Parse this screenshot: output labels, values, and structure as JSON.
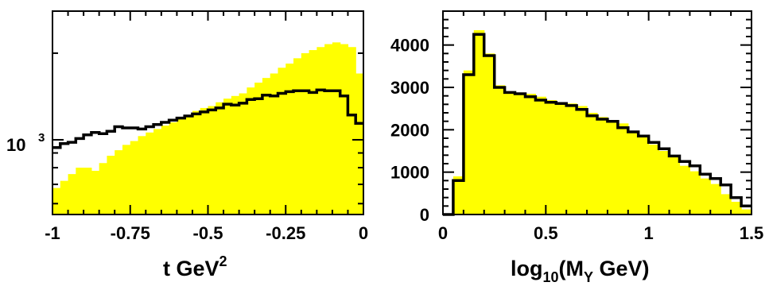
{
  "colors": {
    "fill_histogram": "#ffff00",
    "line_histogram": "#000000",
    "frame": "#000000"
  },
  "chart_data": [
    {
      "type": "histogram",
      "yscale": "log",
      "xlim": [
        -1,
        0
      ],
      "ylim": [
        550,
        2800
      ],
      "xlabel": {
        "base": "t GeV",
        "sup": "2"
      },
      "ylabel": "",
      "ytick_labels": [
        {
          "value": 1000,
          "base": "10",
          "sup": "3"
        }
      ],
      "xtick_labels": [
        {
          "value": -1,
          "label": "-1"
        },
        {
          "value": -0.75,
          "label": "-0.75"
        },
        {
          "value": -0.5,
          "label": "-0.5"
        },
        {
          "value": -0.25,
          "label": "-0.25"
        },
        {
          "value": 0,
          "label": "0"
        }
      ],
      "bin_edges": [
        -1,
        -0.975,
        -0.95,
        -0.925,
        -0.9,
        -0.875,
        -0.85,
        -0.825,
        -0.8,
        -0.775,
        -0.75,
        -0.725,
        -0.7,
        -0.675,
        -0.65,
        -0.625,
        -0.6,
        -0.575,
        -0.55,
        -0.525,
        -0.5,
        -0.475,
        -0.45,
        -0.425,
        -0.4,
        -0.375,
        -0.35,
        -0.325,
        -0.3,
        -0.275,
        -0.25,
        -0.225,
        -0.2,
        -0.175,
        -0.15,
        -0.125,
        -0.1,
        -0.075,
        -0.05,
        -0.025,
        0
      ],
      "series": [
        {
          "style": "filled",
          "values": [
            680,
            720,
            760,
            800,
            800,
            780,
            830,
            880,
            920,
            960,
            990,
            1030,
            1060,
            1090,
            1120,
            1150,
            1180,
            1210,
            1260,
            1290,
            1310,
            1350,
            1390,
            1420,
            1450,
            1520,
            1580,
            1640,
            1700,
            1780,
            1840,
            1920,
            2000,
            2050,
            2100,
            2150,
            2180,
            2150,
            2100,
            1700
          ]
        },
        {
          "style": "outline",
          "values": [
            940,
            970,
            980,
            1010,
            1040,
            1060,
            1050,
            1070,
            1110,
            1100,
            1100,
            1090,
            1110,
            1130,
            1150,
            1170,
            1190,
            1210,
            1230,
            1250,
            1270,
            1290,
            1330,
            1320,
            1340,
            1380,
            1390,
            1430,
            1420,
            1450,
            1470,
            1480,
            1480,
            1460,
            1490,
            1480,
            1480,
            1420,
            1220,
            1140
          ]
        }
      ]
    },
    {
      "type": "histogram",
      "yscale": "linear",
      "xlim": [
        0,
        1.5
      ],
      "ylim": [
        0,
        4800
      ],
      "xlabel": {
        "base": "log",
        "sub": "10",
        "mid": "(M",
        "sub2": "Y",
        "tail": " GeV)"
      },
      "ylabel": "",
      "ytick_labels": [
        {
          "value": 0,
          "label": "0"
        },
        {
          "value": 1000,
          "label": "1000"
        },
        {
          "value": 2000,
          "label": "2000"
        },
        {
          "value": 3000,
          "label": "3000"
        },
        {
          "value": 4000,
          "label": "4000"
        }
      ],
      "xtick_labels": [
        {
          "value": 0,
          "label": "0"
        },
        {
          "value": 0.5,
          "label": "0.5"
        },
        {
          "value": 1,
          "label": "1"
        },
        {
          "value": 1.5,
          "label": "1.5"
        }
      ],
      "bin_edges": [
        0,
        0.025,
        0.05,
        0.075,
        0.1,
        0.125,
        0.15,
        0.175,
        0.2,
        0.225,
        0.25,
        0.275,
        0.3,
        0.325,
        0.35,
        0.375,
        0.4,
        0.425,
        0.45,
        0.475,
        0.5,
        0.525,
        0.55,
        0.575,
        0.6,
        0.625,
        0.65,
        0.675,
        0.7,
        0.725,
        0.75,
        0.775,
        0.8,
        0.825,
        0.85,
        0.875,
        0.9,
        0.925,
        0.95,
        0.975,
        1,
        1.025,
        1.05,
        1.075,
        1.1,
        1.125,
        1.15,
        1.175,
        1.2,
        1.225,
        1.25,
        1.275,
        1.3,
        1.325,
        1.35,
        1.375,
        1.4,
        1.425,
        1.45,
        1.475,
        1.5
      ],
      "series": [
        {
          "style": "filled",
          "values": [
            0,
            0,
            900,
            900,
            3400,
            3400,
            4350,
            4350,
            3800,
            3800,
            3050,
            3050,
            2900,
            2900,
            2850,
            2850,
            2850,
            2850,
            2780,
            2780,
            2700,
            2700,
            2650,
            2650,
            2620,
            2620,
            2560,
            2560,
            2400,
            2400,
            2300,
            2300,
            2200,
            2200,
            2150,
            2150,
            1950,
            1950,
            1850,
            1850,
            1650,
            1650,
            1500,
            1500,
            1350,
            1350,
            1150,
            1150,
            1020,
            1020,
            850,
            850,
            720,
            720,
            480,
            480,
            300,
            300,
            120,
            120
          ]
        },
        {
          "style": "outline",
          "values": [
            0,
            0,
            800,
            800,
            3300,
            3300,
            4250,
            4250,
            3750,
            3750,
            3000,
            3000,
            2880,
            2880,
            2850,
            2850,
            2780,
            2780,
            2700,
            2700,
            2650,
            2650,
            2620,
            2620,
            2570,
            2570,
            2480,
            2480,
            2330,
            2330,
            2250,
            2250,
            2200,
            2200,
            2050,
            2050,
            1950,
            1950,
            1850,
            1850,
            1700,
            1700,
            1550,
            1550,
            1380,
            1380,
            1250,
            1250,
            1150,
            1150,
            950,
            950,
            850,
            850,
            700,
            700,
            400,
            400,
            200,
            200
          ]
        }
      ]
    }
  ]
}
